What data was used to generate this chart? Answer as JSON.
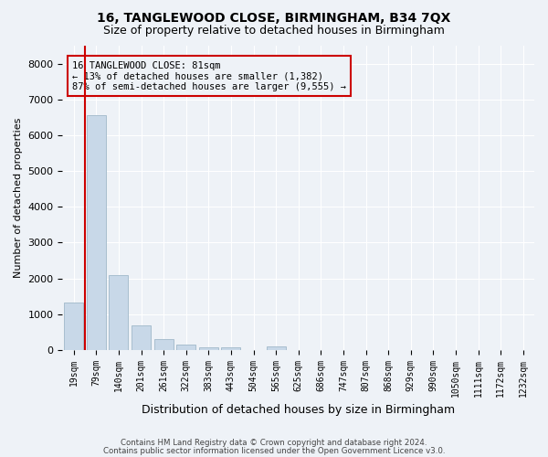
{
  "title": "16, TANGLEWOOD CLOSE, BIRMINGHAM, B34 7QX",
  "subtitle": "Size of property relative to detached houses in Birmingham",
  "xlabel": "Distribution of detached houses by size in Birmingham",
  "ylabel": "Number of detached properties",
  "footnote1": "Contains HM Land Registry data © Crown copyright and database right 2024.",
  "footnote2": "Contains public sector information licensed under the Open Government Licence v3.0.",
  "property_label": "16 TANGLEWOOD CLOSE: 81sqm",
  "annotation_line1": "← 13% of detached houses are smaller (1,382)",
  "annotation_line2": "87% of semi-detached houses are larger (9,555) →",
  "bar_color": "#c8d8e8",
  "bar_edge_color": "#a8bece",
  "vline_color": "#cc0000",
  "annotation_box_color": "#cc0000",
  "bins": [
    "19sqm",
    "79sqm",
    "140sqm",
    "201sqm",
    "261sqm",
    "322sqm",
    "383sqm",
    "443sqm",
    "504sqm",
    "565sqm",
    "625sqm",
    "686sqm",
    "747sqm",
    "807sqm",
    "868sqm",
    "929sqm",
    "990sqm",
    "1050sqm",
    "1111sqm",
    "1172sqm",
    "1232sqm"
  ],
  "values": [
    1320,
    6560,
    2080,
    680,
    295,
    150,
    80,
    60,
    0,
    100,
    0,
    0,
    0,
    0,
    0,
    0,
    0,
    0,
    0,
    0,
    0
  ],
  "ylim": [
    0,
    8500
  ],
  "yticks": [
    0,
    1000,
    2000,
    3000,
    4000,
    5000,
    6000,
    7000,
    8000
  ],
  "background_color": "#eef2f7",
  "grid_color": "#ffffff"
}
